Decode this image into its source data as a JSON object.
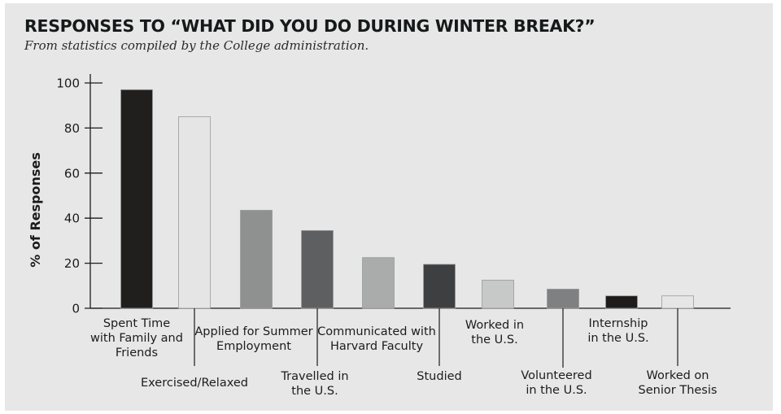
{
  "chart_data": {
    "type": "bar",
    "title": "RESPONSES TO “WHAT DID YOU DO DURING WINTER BREAK?”",
    "subtitle": "From statistics compiled by the College administration.",
    "ylabel": "% of Responses",
    "xlabel": "",
    "ylim": [
      0,
      100
    ],
    "yticks": [
      0,
      20,
      40,
      60,
      80,
      100
    ],
    "grid": false,
    "categories": [
      "Spent Time with Family and Friends",
      "Exercised/Relaxed",
      "Applied for Summer Employment",
      "Travelled in the U.S.",
      "Communicated with Harvard Faculty",
      "Studied",
      "Worked in the U.S.",
      "Volunteered in the U.S.",
      "Internship in the U.S.",
      "Worked on Senior Thesis"
    ],
    "category_label_lines": [
      [
        "Spent Time",
        "with Family and",
        "Friends"
      ],
      [
        "Exercised/Relaxed"
      ],
      [
        "Applied for Summer",
        "Employment"
      ],
      [
        "Travelled in",
        "the U.S."
      ],
      [
        "Communicated with",
        "Harvard Faculty"
      ],
      [
        "Studied"
      ],
      [
        "Worked in",
        "the U.S."
      ],
      [
        "Volunteered",
        "in the U.S."
      ],
      [
        "Internship",
        "in the U.S."
      ],
      [
        "Worked on",
        "Senior Thesis"
      ]
    ],
    "values": [
      97,
      85,
      43.5,
      34.5,
      22.5,
      19.5,
      12.5,
      8.5,
      5.5,
      5.5
    ],
    "colors": [
      "#211f1e",
      "#e4e5e4",
      "#8f9190",
      "#5e5f60",
      "#aaacab",
      "#3e3f41",
      "#c7c8c8",
      "#7f8081",
      "#1e1c1b",
      "#e5e6e5"
    ]
  }
}
